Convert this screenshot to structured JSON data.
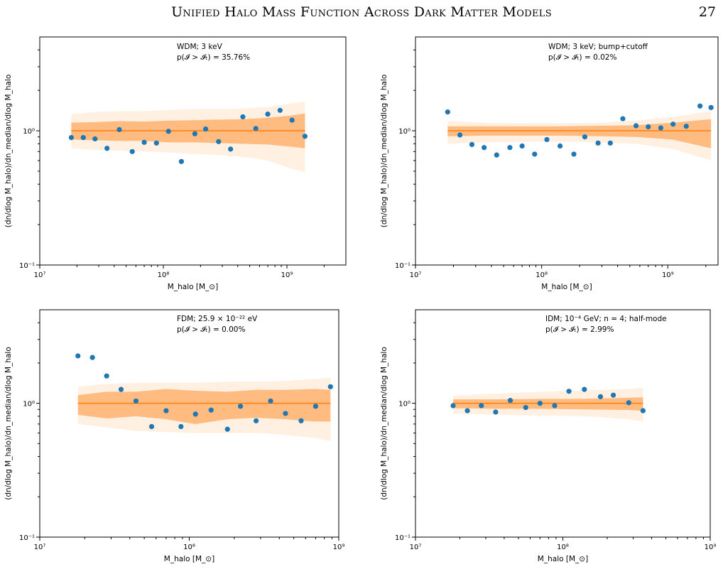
{
  "header": {
    "title": "Unified Halo Mass Function Across Dark Matter Models",
    "page_number": "27"
  },
  "colors": {
    "points": "#1f77b4",
    "median": "#ff7f0e",
    "band_inner": "#ffbb80",
    "band_outer": "#fff0e2",
    "axes": "#000000"
  },
  "chart_data": [
    {
      "type": "scatter",
      "annotation_line1": "WDM; 3 keV",
      "annotation_line2": "p(𝓘 > 𝓘ₜ) = 35.76%",
      "xlabel": "M_halo [M_⊙]",
      "ylabel": "(dn/dlog M_halo)/dn_median/dlog M_halo",
      "xscale": "log",
      "yscale": "log",
      "xlim": [
        10000000.0,
        3000000000.0
      ],
      "ylim": [
        0.1,
        5
      ],
      "xticks": [
        "10⁷",
        "10⁸",
        "10⁹"
      ],
      "yticks": [
        "10⁻¹",
        "10⁰"
      ],
      "points": {
        "x": [
          18000000.0,
          22500000.0,
          28000000.0,
          35000000.0,
          44000000.0,
          56000000.0,
          70000000.0,
          88000000.0,
          110000000.0,
          140000000.0,
          180000000.0,
          220000000.0,
          280000000.0,
          350000000.0,
          440000000.0,
          560000000.0,
          700000000.0,
          880000000.0,
          1100000000.0,
          1400000000.0
        ],
        "y": [
          0.89,
          0.89,
          0.87,
          0.74,
          1.02,
          0.7,
          0.82,
          0.81,
          0.99,
          0.59,
          0.95,
          1.03,
          0.83,
          0.73,
          1.27,
          1.04,
          1.33,
          1.42,
          1.2,
          0.91
        ]
      },
      "median": {
        "x": [
          18000000.0,
          1400000000.0
        ],
        "y": [
          1.0,
          1.0
        ]
      },
      "band_inner": {
        "x": [
          18000000.0,
          28000000.0,
          44000000.0,
          70000000.0,
          110000000.0,
          180000000.0,
          280000000.0,
          440000000.0,
          700000000.0,
          1100000000.0,
          1400000000.0
        ],
        "lower": [
          0.86,
          0.85,
          0.84,
          0.84,
          0.82,
          0.82,
          0.81,
          0.8,
          0.79,
          0.76,
          0.74
        ],
        "upper": [
          1.15,
          1.16,
          1.18,
          1.17,
          1.19,
          1.2,
          1.21,
          1.22,
          1.25,
          1.3,
          1.35
        ]
      },
      "band_outer": {
        "x": [
          18000000.0,
          28000000.0,
          44000000.0,
          70000000.0,
          110000000.0,
          180000000.0,
          280000000.0,
          440000000.0,
          700000000.0,
          1100000000.0,
          1400000000.0
        ],
        "lower": [
          0.74,
          0.72,
          0.71,
          0.7,
          0.69,
          0.67,
          0.66,
          0.64,
          0.6,
          0.52,
          0.49
        ],
        "upper": [
          1.33,
          1.38,
          1.4,
          1.4,
          1.43,
          1.45,
          1.45,
          1.47,
          1.5,
          1.6,
          1.65
        ]
      }
    },
    {
      "type": "scatter",
      "annotation_line1": "WDM; 3 keV; bump+cutoff",
      "annotation_line2": "p(𝓘 > 𝓘ₜ) = 0.02%",
      "xlabel": "M_halo [M_⊙]",
      "ylabel": "(dn/dlog M_halo)/dn_median/dlog M_halo",
      "xscale": "log",
      "yscale": "log",
      "xlim": [
        10000000.0,
        2500000000.0
      ],
      "ylim": [
        0.1,
        5
      ],
      "xticks": [
        "10⁷",
        "10⁸",
        "10⁹"
      ],
      "yticks": [
        "10⁻¹",
        "10⁰"
      ],
      "points": {
        "x": [
          18000000.0,
          22500000.0,
          28000000.0,
          35000000.0,
          44000000.0,
          56000000.0,
          70000000.0,
          88000000.0,
          110000000.0,
          140000000.0,
          180000000.0,
          220000000.0,
          280000000.0,
          350000000.0,
          440000000.0,
          560000000.0,
          700000000.0,
          880000000.0,
          1100000000.0,
          1400000000.0,
          1800000000.0,
          2200000000.0
        ],
        "y": [
          1.38,
          0.93,
          0.79,
          0.75,
          0.66,
          0.75,
          0.77,
          0.67,
          0.86,
          0.77,
          0.67,
          0.9,
          0.81,
          0.81,
          1.23,
          1.09,
          1.07,
          1.05,
          1.12,
          1.08,
          1.53,
          1.49
        ]
      },
      "median": {
        "x": [
          18000000.0,
          2200000000.0
        ],
        "y": [
          1.0,
          1.0
        ]
      },
      "band_inner": {
        "x": [
          18000000.0,
          35000000.0,
          70000000.0,
          140000000.0,
          280000000.0,
          560000000.0,
          1100000000.0,
          2200000000.0
        ],
        "lower": [
          0.91,
          0.92,
          0.92,
          0.92,
          0.91,
          0.9,
          0.86,
          0.74
        ],
        "upper": [
          1.08,
          1.08,
          1.08,
          1.08,
          1.09,
          1.1,
          1.15,
          1.22
        ]
      },
      "band_outer": {
        "x": [
          18000000.0,
          35000000.0,
          70000000.0,
          140000000.0,
          280000000.0,
          560000000.0,
          1100000000.0,
          2200000000.0
        ],
        "lower": [
          0.8,
          0.82,
          0.83,
          0.83,
          0.82,
          0.8,
          0.73,
          0.6
        ],
        "upper": [
          1.18,
          1.15,
          1.14,
          1.14,
          1.15,
          1.19,
          1.27,
          1.4
        ]
      }
    },
    {
      "type": "scatter",
      "annotation_line1": "FDM; 25.9 × 10⁻²² eV",
      "annotation_line2": "p(𝓘 > 𝓘ₜ) = 0.00%",
      "xlabel": "M_halo [M_⊙]",
      "ylabel": "(dn/dlog M_halo)/dn_median/dlog M_halo",
      "xscale": "log",
      "yscale": "log",
      "xlim": [
        10000000.0,
        1000000000.0
      ],
      "ylim": [
        0.1,
        5
      ],
      "xticks": [
        "10⁷",
        "10⁸",
        "10⁹"
      ],
      "yticks": [
        "10⁻¹",
        "10⁰"
      ],
      "points": {
        "x": [
          18000000.0,
          22500000.0,
          28000000.0,
          35000000.0,
          44000000.0,
          56000000.0,
          70000000.0,
          88000000.0,
          110000000.0,
          140000000.0,
          180000000.0,
          220000000.0,
          280000000.0,
          350000000.0,
          440000000.0,
          560000000.0,
          700000000.0,
          880000000.0
        ],
        "y": [
          2.26,
          2.2,
          1.6,
          1.27,
          1.04,
          0.67,
          0.88,
          0.67,
          0.83,
          0.89,
          0.64,
          0.95,
          0.74,
          1.04,
          0.84,
          0.74,
          0.95,
          1.33
        ]
      },
      "median": {
        "x": [
          18000000.0,
          880000000.0
        ],
        "y": [
          1.0,
          1.0
        ]
      },
      "band_inner": {
        "x": [
          18000000.0,
          28000000.0,
          44000000.0,
          70000000.0,
          110000000.0,
          180000000.0,
          280000000.0,
          440000000.0,
          700000000.0,
          880000000.0
        ],
        "lower": [
          0.82,
          0.77,
          0.8,
          0.76,
          0.7,
          0.76,
          0.78,
          0.76,
          0.73,
          0.73
        ],
        "upper": [
          1.15,
          1.22,
          1.22,
          1.28,
          1.24,
          1.22,
          1.26,
          1.26,
          1.28,
          1.26
        ]
      },
      "band_outer": {
        "x": [
          18000000.0,
          28000000.0,
          44000000.0,
          70000000.0,
          110000000.0,
          180000000.0,
          280000000.0,
          440000000.0,
          700000000.0,
          880000000.0
        ],
        "lower": [
          0.7,
          0.66,
          0.62,
          0.61,
          0.6,
          0.6,
          0.6,
          0.58,
          0.55,
          0.52
        ],
        "upper": [
          1.33,
          1.4,
          1.42,
          1.43,
          1.43,
          1.45,
          1.45,
          1.47,
          1.52,
          1.55
        ]
      }
    },
    {
      "type": "scatter",
      "annotation_line1": "IDM; 10⁻⁴ GeV; n = 4; half-mode",
      "annotation_line2": "p(𝓘 > 𝓘ₜ) = 2.99%",
      "xlabel": "M_halo [M_⊙]",
      "ylabel": "(dn/dlog M_halo)/dn_median/dlog M_halo",
      "xscale": "log",
      "yscale": "log",
      "xlim": [
        10000000.0,
        1000000000.0
      ],
      "ylim": [
        0.1,
        5
      ],
      "xticks": [
        "10⁷",
        "10⁸",
        "10⁹"
      ],
      "yticks": [
        "10⁻¹",
        "10⁰"
      ],
      "points": {
        "x": [
          18000000.0,
          22500000.0,
          28000000.0,
          35000000.0,
          44000000.0,
          56000000.0,
          70000000.0,
          88000000.0,
          110000000.0,
          140000000.0,
          180000000.0,
          220000000.0,
          280000000.0,
          350000000.0
        ],
        "y": [
          0.96,
          0.88,
          0.96,
          0.86,
          1.05,
          0.93,
          1.0,
          0.96,
          1.23,
          1.27,
          1.12,
          1.15,
          1.01,
          0.88
        ]
      },
      "median": {
        "x": [
          18000000.0,
          350000000.0
        ],
        "y": [
          1.0,
          1.0
        ]
      },
      "band_inner": {
        "x": [
          18000000.0,
          35000000.0,
          70000000.0,
          140000000.0,
          280000000.0,
          350000000.0
        ],
        "lower": [
          0.92,
          0.91,
          0.91,
          0.9,
          0.89,
          0.88
        ],
        "upper": [
          1.07,
          1.07,
          1.08,
          1.08,
          1.1,
          1.11
        ]
      },
      "band_outer": {
        "x": [
          18000000.0,
          35000000.0,
          70000000.0,
          140000000.0,
          280000000.0,
          350000000.0
        ],
        "lower": [
          0.84,
          0.82,
          0.81,
          0.8,
          0.76,
          0.73
        ],
        "upper": [
          1.14,
          1.18,
          1.22,
          1.25,
          1.28,
          1.31
        ]
      }
    }
  ]
}
